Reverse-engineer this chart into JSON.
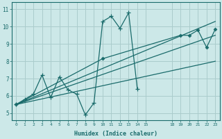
{
  "bg_color": "#cce8e8",
  "grid_color": "#aacccc",
  "line_color": "#1a6b6b",
  "xlim": [
    -0.5,
    23.5
  ],
  "ylim": [
    4.6,
    11.4
  ],
  "xticks": [
    0,
    1,
    2,
    3,
    4,
    5,
    6,
    7,
    8,
    9,
    10,
    11,
    12,
    13,
    14,
    15,
    18,
    19,
    20,
    21,
    22,
    23
  ],
  "yticks": [
    5,
    6,
    7,
    8,
    9,
    10,
    11
  ],
  "xlabel": "Humidex (Indice chaleur)",
  "zigzag_x": [
    0,
    1,
    2,
    3,
    4,
    5,
    6,
    7,
    8,
    9,
    10,
    11,
    12,
    13,
    14
  ],
  "zigzag_y": [
    5.5,
    5.8,
    6.1,
    7.2,
    5.9,
    7.1,
    6.35,
    6.1,
    4.9,
    5.6,
    10.3,
    10.6,
    9.9,
    10.8,
    6.4
  ],
  "trend1_x": [
    0,
    23
  ],
  "trend1_y": [
    5.5,
    10.3
  ],
  "trend2_x": [
    0,
    23
  ],
  "trend2_y": [
    5.5,
    9.5
  ],
  "trend3_x": [
    0,
    23
  ],
  "trend3_y": [
    5.5,
    8.0
  ],
  "diamond_x": [
    0,
    10,
    19,
    20,
    21,
    22,
    23
  ],
  "diamond_y": [
    5.5,
    8.15,
    9.5,
    9.5,
    9.8,
    8.8,
    9.85
  ]
}
